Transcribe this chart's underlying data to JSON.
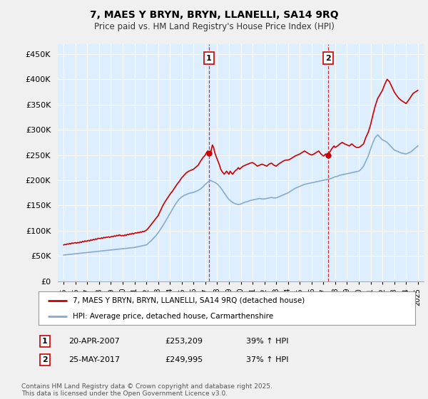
{
  "title": "7, MAES Y BRYN, BRYN, LLANELLI, SA14 9RQ",
  "subtitle": "Price paid vs. HM Land Registry's House Price Index (HPI)",
  "background_color": "#f0f0f0",
  "plot_bg_color": "#ddeeff",
  "grid_color": "#ffffff",
  "red_line_color": "#cc0000",
  "blue_line_color": "#88aacc",
  "marker1_x": 2007.3,
  "marker1_y": 253209,
  "marker2_x": 2017.4,
  "marker2_y": 249995,
  "legend_red": "7, MAES Y BRYN, BRYN, LLANELLI, SA14 9RQ (detached house)",
  "legend_blue": "HPI: Average price, detached house, Carmarthenshire",
  "footer": "Contains HM Land Registry data © Crown copyright and database right 2025.\nThis data is licensed under the Open Government Licence v3.0.",
  "ylim": [
    0,
    470000
  ],
  "yticks": [
    0,
    50000,
    100000,
    150000,
    200000,
    250000,
    300000,
    350000,
    400000,
    450000
  ],
  "xlim": [
    1994.5,
    2025.5
  ],
  "xticks": [
    1995,
    1996,
    1997,
    1998,
    1999,
    2000,
    2001,
    2002,
    2003,
    2004,
    2005,
    2006,
    2007,
    2008,
    2009,
    2010,
    2011,
    2012,
    2013,
    2014,
    2015,
    2016,
    2017,
    2018,
    2019,
    2020,
    2021,
    2022,
    2023,
    2024,
    2025
  ],
  "red_x": [
    1995.0,
    1995.1,
    1995.2,
    1995.3,
    1995.4,
    1995.5,
    1995.6,
    1995.7,
    1995.8,
    1995.9,
    1996.0,
    1996.1,
    1996.2,
    1996.3,
    1996.4,
    1996.5,
    1996.6,
    1996.7,
    1996.8,
    1996.9,
    1997.0,
    1997.1,
    1997.2,
    1997.3,
    1997.4,
    1997.5,
    1997.6,
    1997.7,
    1997.8,
    1997.9,
    1998.0,
    1998.1,
    1998.2,
    1998.3,
    1998.4,
    1998.5,
    1998.6,
    1998.7,
    1998.8,
    1998.9,
    1999.0,
    1999.1,
    1999.2,
    1999.3,
    1999.4,
    1999.5,
    1999.6,
    1999.7,
    1999.8,
    1999.9,
    2000.0,
    2000.1,
    2000.2,
    2000.3,
    2000.4,
    2000.5,
    2000.6,
    2000.7,
    2000.8,
    2000.9,
    2001.0,
    2001.1,
    2001.2,
    2001.3,
    2001.4,
    2001.5,
    2001.6,
    2001.7,
    2001.8,
    2001.9,
    2002.0,
    2002.2,
    2002.4,
    2002.6,
    2002.8,
    2003.0,
    2003.2,
    2003.4,
    2003.6,
    2003.8,
    2004.0,
    2004.2,
    2004.4,
    2004.6,
    2004.8,
    2005.0,
    2005.2,
    2005.4,
    2005.6,
    2005.8,
    2006.0,
    2006.2,
    2006.4,
    2006.6,
    2006.8,
    2007.0,
    2007.1,
    2007.2,
    2007.3,
    2007.4,
    2007.5,
    2007.6,
    2007.7,
    2007.8,
    2007.9,
    2008.0,
    2008.1,
    2008.2,
    2008.3,
    2008.4,
    2008.5,
    2008.6,
    2008.7,
    2008.8,
    2008.9,
    2009.0,
    2009.1,
    2009.2,
    2009.3,
    2009.4,
    2009.5,
    2009.6,
    2009.7,
    2009.8,
    2009.9,
    2010.0,
    2010.2,
    2010.4,
    2010.6,
    2010.8,
    2011.0,
    2011.2,
    2011.4,
    2011.6,
    2011.8,
    2012.0,
    2012.2,
    2012.4,
    2012.6,
    2012.8,
    2013.0,
    2013.2,
    2013.4,
    2013.6,
    2013.8,
    2014.0,
    2014.2,
    2014.4,
    2014.6,
    2014.8,
    2015.0,
    2015.2,
    2015.4,
    2015.6,
    2015.8,
    2016.0,
    2016.2,
    2016.4,
    2016.6,
    2016.8,
    2017.0,
    2017.1,
    2017.2,
    2017.3,
    2017.4,
    2017.5,
    2017.6,
    2017.7,
    2017.8,
    2017.9,
    2018.0,
    2018.2,
    2018.4,
    2018.6,
    2018.8,
    2019.0,
    2019.2,
    2019.4,
    2019.6,
    2019.8,
    2020.0,
    2020.2,
    2020.4,
    2020.6,
    2020.8,
    2021.0,
    2021.2,
    2021.4,
    2021.6,
    2021.8,
    2022.0,
    2022.2,
    2022.4,
    2022.6,
    2022.8,
    2023.0,
    2023.2,
    2023.4,
    2023.6,
    2023.8,
    2024.0,
    2024.2,
    2024.4,
    2024.6,
    2024.8,
    2025.0
  ],
  "red_y": [
    72000,
    73000,
    72500,
    74000,
    73500,
    75000,
    74000,
    76000,
    75000,
    76000,
    76500,
    75500,
    77000,
    76000,
    78000,
    77000,
    79000,
    78000,
    80000,
    79000,
    80000,
    81000,
    80000,
    82000,
    81000,
    83000,
    82000,
    84000,
    83000,
    85000,
    85000,
    84500,
    86000,
    85000,
    87000,
    86000,
    87500,
    87000,
    88000,
    87000,
    88000,
    89000,
    88500,
    90000,
    89000,
    91000,
    90000,
    92000,
    91000,
    90000,
    91000,
    90000,
    92000,
    91000,
    93000,
    92000,
    94000,
    93000,
    95000,
    94000,
    95000,
    96000,
    95500,
    97000,
    96000,
    98000,
    97000,
    99000,
    98000,
    100000,
    101000,
    106000,
    112000,
    118000,
    124000,
    130000,
    140000,
    150000,
    158000,
    165000,
    172000,
    178000,
    185000,
    192000,
    198000,
    205000,
    210000,
    215000,
    218000,
    220000,
    222000,
    226000,
    230000,
    238000,
    245000,
    250000,
    255000,
    258000,
    253209,
    250000,
    260000,
    270000,
    265000,
    255000,
    248000,
    242000,
    236000,
    230000,
    222000,
    218000,
    215000,
    212000,
    215000,
    218000,
    215000,
    212000,
    218000,
    215000,
    212000,
    215000,
    218000,
    220000,
    222000,
    225000,
    222000,
    224000,
    228000,
    230000,
    232000,
    234000,
    235000,
    232000,
    228000,
    230000,
    232000,
    230000,
    228000,
    232000,
    234000,
    230000,
    228000,
    232000,
    235000,
    238000,
    240000,
    240000,
    242000,
    245000,
    248000,
    250000,
    252000,
    255000,
    258000,
    255000,
    252000,
    250000,
    252000,
    255000,
    258000,
    252000,
    248000,
    250000,
    252000,
    249995,
    252000,
    255000,
    258000,
    262000,
    265000,
    268000,
    265000,
    268000,
    272000,
    275000,
    272000,
    270000,
    268000,
    272000,
    268000,
    265000,
    265000,
    268000,
    272000,
    285000,
    295000,
    310000,
    330000,
    348000,
    362000,
    370000,
    378000,
    390000,
    400000,
    395000,
    385000,
    375000,
    368000,
    362000,
    358000,
    355000,
    352000,
    358000,
    365000,
    372000,
    375000,
    378000
  ],
  "blue_x": [
    1995.0,
    1995.2,
    1995.4,
    1995.6,
    1995.8,
    1996.0,
    1996.2,
    1996.4,
    1996.6,
    1996.8,
    1997.0,
    1997.2,
    1997.4,
    1997.6,
    1997.8,
    1998.0,
    1998.2,
    1998.4,
    1998.6,
    1998.8,
    1999.0,
    1999.2,
    1999.4,
    1999.6,
    1999.8,
    2000.0,
    2000.2,
    2000.4,
    2000.6,
    2000.8,
    2001.0,
    2001.2,
    2001.4,
    2001.6,
    2001.8,
    2002.0,
    2002.2,
    2002.4,
    2002.6,
    2002.8,
    2003.0,
    2003.2,
    2003.4,
    2003.6,
    2003.8,
    2004.0,
    2004.2,
    2004.4,
    2004.6,
    2004.8,
    2005.0,
    2005.2,
    2005.4,
    2005.6,
    2005.8,
    2006.0,
    2006.2,
    2006.4,
    2006.6,
    2006.8,
    2007.0,
    2007.2,
    2007.4,
    2007.6,
    2007.8,
    2008.0,
    2008.2,
    2008.4,
    2008.6,
    2008.8,
    2009.0,
    2009.2,
    2009.4,
    2009.6,
    2009.8,
    2010.0,
    2010.2,
    2010.4,
    2010.6,
    2010.8,
    2011.0,
    2011.2,
    2011.4,
    2011.6,
    2011.8,
    2012.0,
    2012.2,
    2012.4,
    2012.6,
    2012.8,
    2013.0,
    2013.2,
    2013.4,
    2013.6,
    2013.8,
    2014.0,
    2014.2,
    2014.4,
    2014.6,
    2014.8,
    2015.0,
    2015.2,
    2015.4,
    2015.6,
    2015.8,
    2016.0,
    2016.2,
    2016.4,
    2016.6,
    2016.8,
    2017.0,
    2017.2,
    2017.4,
    2017.6,
    2017.8,
    2018.0,
    2018.2,
    2018.4,
    2018.6,
    2018.8,
    2019.0,
    2019.2,
    2019.4,
    2019.6,
    2019.8,
    2020.0,
    2020.2,
    2020.4,
    2020.6,
    2020.8,
    2021.0,
    2021.2,
    2021.4,
    2021.6,
    2021.8,
    2022.0,
    2022.2,
    2022.4,
    2022.6,
    2022.8,
    2023.0,
    2023.2,
    2023.4,
    2023.6,
    2023.8,
    2024.0,
    2024.2,
    2024.4,
    2024.6,
    2024.8,
    2025.0
  ],
  "blue_y": [
    52000,
    52500,
    53000,
    53500,
    54000,
    54500,
    55000,
    55500,
    56000,
    56500,
    57000,
    57500,
    58000,
    58500,
    59000,
    59500,
    60000,
    60500,
    61000,
    61500,
    62000,
    62500,
    63000,
    63500,
    64000,
    64500,
    65000,
    65500,
    66000,
    66500,
    67000,
    68000,
    69000,
    70000,
    71000,
    72000,
    76000,
    80000,
    85000,
    90000,
    96000,
    103000,
    110000,
    118000,
    126000,
    134000,
    142000,
    150000,
    157000,
    163000,
    167000,
    170000,
    172000,
    174000,
    175000,
    176000,
    178000,
    180000,
    183000,
    187000,
    192000,
    196000,
    200000,
    198000,
    196000,
    193000,
    188000,
    182000,
    175000,
    168000,
    162000,
    158000,
    155000,
    153000,
    152000,
    153000,
    155000,
    157000,
    158000,
    160000,
    161000,
    162000,
    163000,
    164000,
    163000,
    163000,
    164000,
    165000,
    166000,
    165000,
    165000,
    167000,
    169000,
    171000,
    173000,
    175000,
    178000,
    181000,
    184000,
    186000,
    188000,
    190000,
    192000,
    193000,
    194000,
    195000,
    196000,
    197000,
    198000,
    199000,
    200000,
    201000,
    202000,
    203000,
    205000,
    207000,
    208000,
    210000,
    211000,
    212000,
    213000,
    214000,
    215000,
    216000,
    217000,
    218000,
    222000,
    228000,
    238000,
    248000,
    262000,
    275000,
    285000,
    290000,
    285000,
    280000,
    278000,
    275000,
    270000,
    265000,
    260000,
    258000,
    256000,
    254000,
    253000,
    252000,
    254000,
    256000,
    260000,
    264000,
    268000
  ]
}
